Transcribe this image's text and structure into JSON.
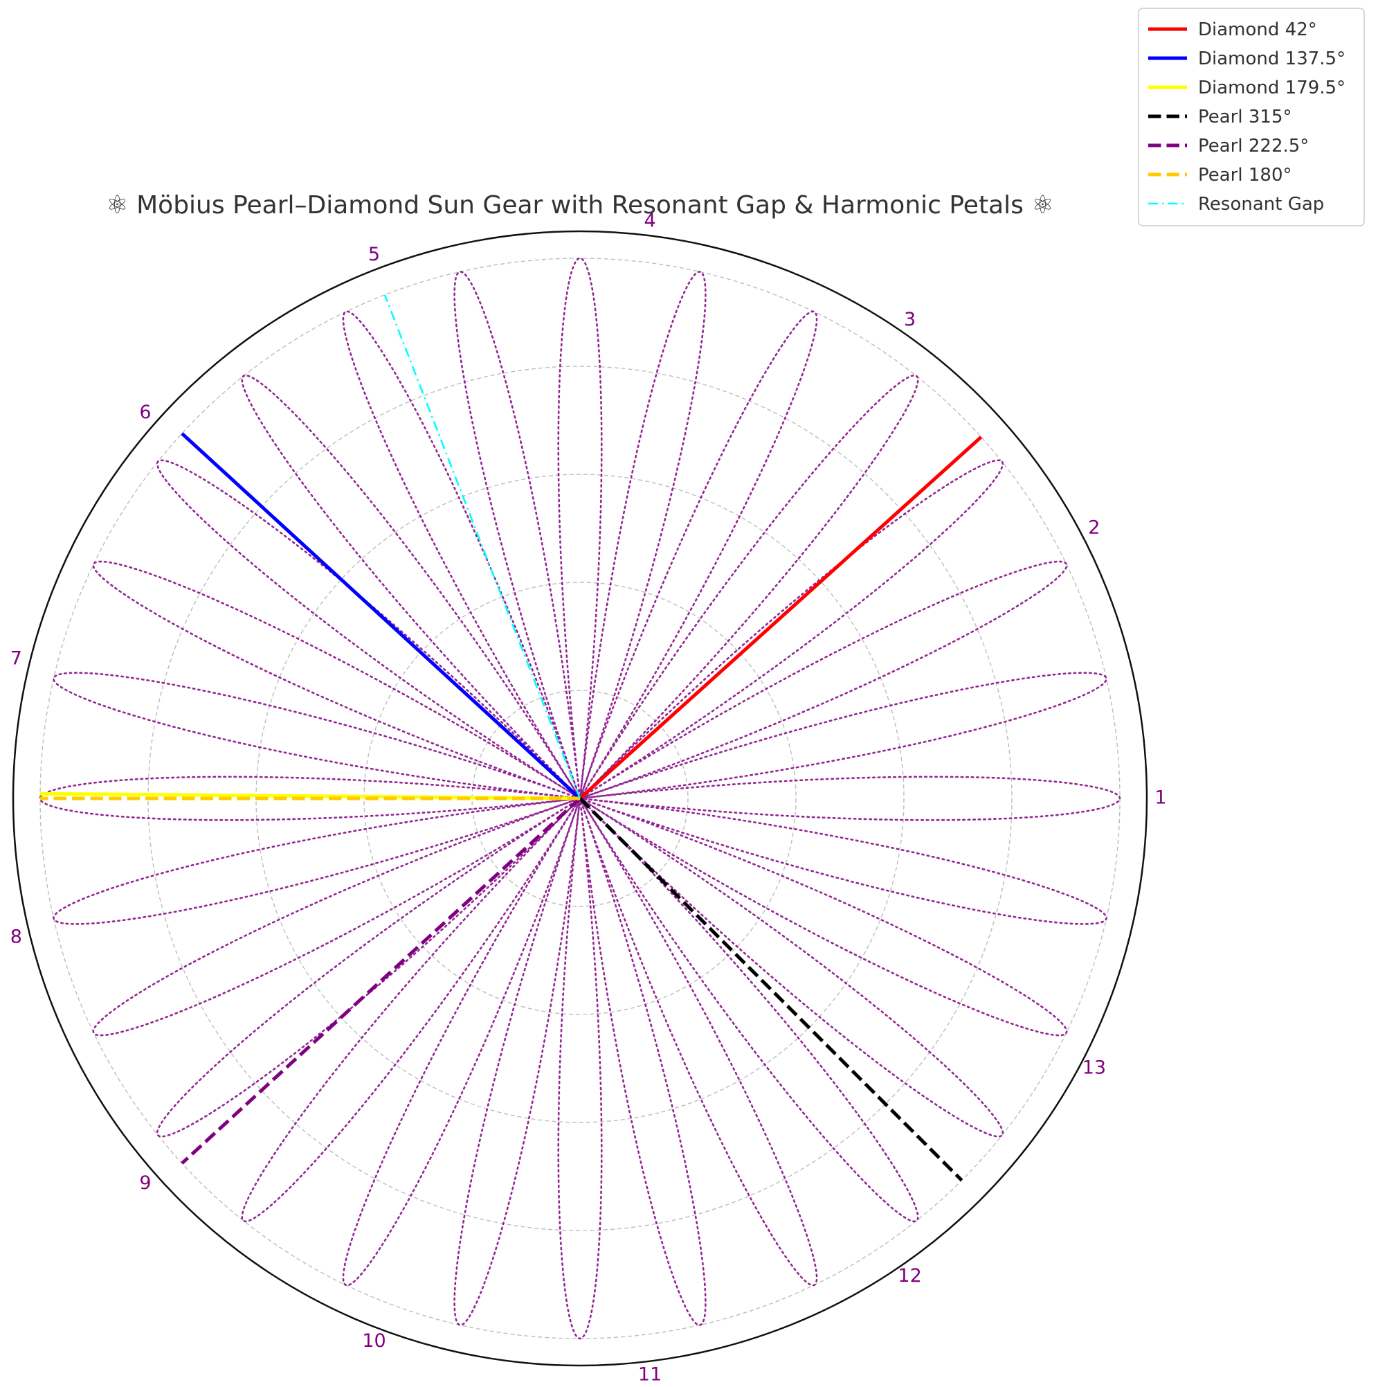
{
  "chart_data": {
    "type": "polar-line",
    "title": "⚛ Möbius Pearl–Diamond Sun Gear with Resonant Gap & Harmonic Petals ⚛",
    "rmax": 1.05,
    "grid": true,
    "grid_radii": [
      0.2,
      0.4,
      0.6,
      0.8,
      1.0
    ],
    "angular_tick_labels": [
      "1",
      "2",
      "3",
      "4",
      "5",
      "6",
      "7",
      "8",
      "9",
      "10",
      "11",
      "12",
      "13"
    ],
    "angular_tick_color": "#800080",
    "legend_position": "top-right, outside axes",
    "series": [
      {
        "name": "Diamond 42°",
        "angle_deg": 42,
        "r": [
          0,
          1.0
        ],
        "color": "#ff0000",
        "style": "solid"
      },
      {
        "name": "Diamond 137.5°",
        "angle_deg": 137.5,
        "r": [
          0,
          1.0
        ],
        "color": "#0000ff",
        "style": "solid"
      },
      {
        "name": "Diamond 179.5°",
        "angle_deg": 179.5,
        "r": [
          0,
          1.0
        ],
        "color": "#ffff00",
        "style": "solid"
      },
      {
        "name": "Pearl 315°",
        "angle_deg": 315,
        "r": [
          0,
          1.0
        ],
        "color": "#000000",
        "style": "dashed"
      },
      {
        "name": "Pearl 222.5°",
        "angle_deg": 222.5,
        "r": [
          0,
          1.0
        ],
        "color": "#800080",
        "style": "dashed"
      },
      {
        "name": "Pearl 180°",
        "angle_deg": 180,
        "r": [
          0,
          1.0
        ],
        "color": "#ffcc00",
        "style": "dashed"
      },
      {
        "name": "Resonant Gap",
        "angle_deg": 111.2,
        "r": [
          0,
          1.0
        ],
        "color": "#00ffff",
        "style": "dashdot"
      }
    ],
    "petals": {
      "equation": "r = |cos(14θ)|",
      "petal_count": 28,
      "color": "#800080",
      "style": "dotted"
    }
  }
}
